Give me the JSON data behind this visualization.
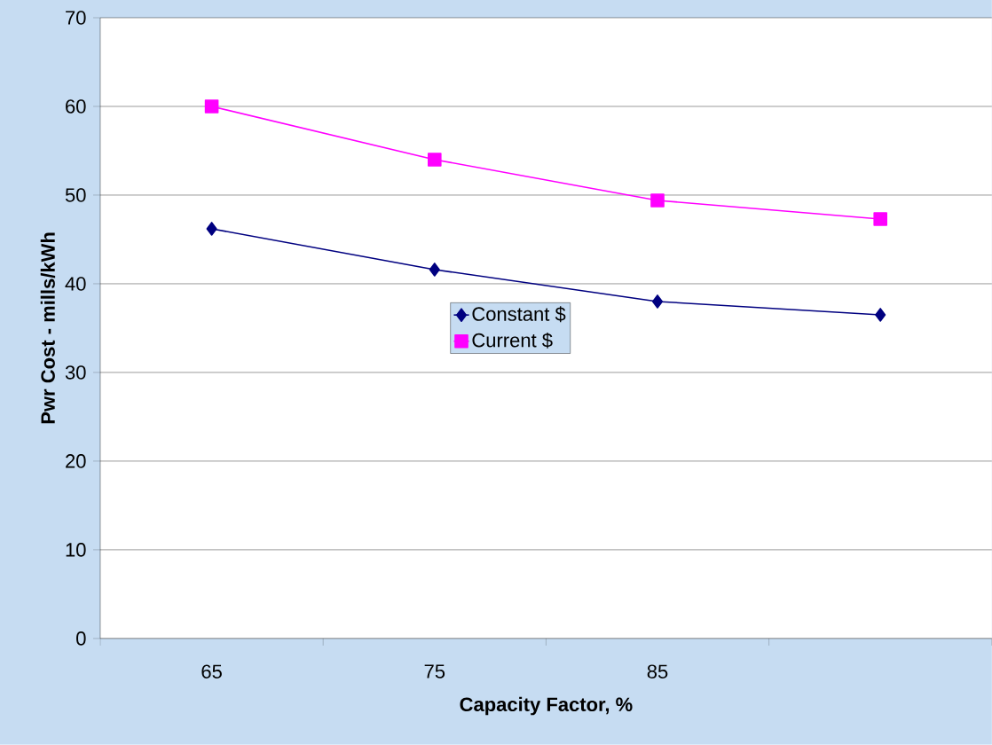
{
  "chart_data": {
    "type": "line",
    "xlabel": "Capacity Factor, %",
    "ylabel": "Pwr Cost - mills/kWh",
    "categories": [
      "65",
      "75",
      "85",
      null
    ],
    "series": [
      {
        "name": "Constant $",
        "color": "#000080",
        "marker": "diamond",
        "values": [
          46.2,
          41.6,
          38.0,
          36.5
        ]
      },
      {
        "name": "Current $",
        "color": "#ff00ff",
        "marker": "square",
        "values": [
          60.0,
          54.0,
          49.4,
          47.3
        ]
      }
    ],
    "ylim": [
      0,
      70
    ],
    "yticks": [
      0,
      10,
      20,
      30,
      40,
      50,
      60,
      70
    ],
    "grid": "y",
    "legend": "center",
    "line_style": "solid"
  }
}
